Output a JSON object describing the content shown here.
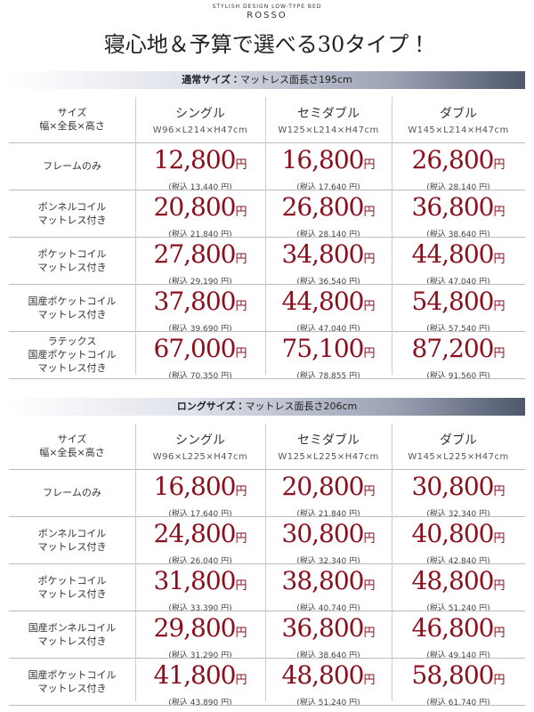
{
  "header": {
    "kicker": "STYLISH DESIGN LOW-TYPE BED",
    "brand": "ROSSO",
    "title": "寝心地＆予算で選べる30タイプ！"
  },
  "currency": "円",
  "sections": [
    {
      "title_bold": "通常サイズ：",
      "title_rest": "マットレス面長さ195cm",
      "header": {
        "label": [
          "サイズ",
          "幅×全長×高さ"
        ],
        "columns": [
          {
            "name": "シングル",
            "dims": "W96×L214×H47cm"
          },
          {
            "name": "セミダブル",
            "dims": "W125×L214×H47cm"
          },
          {
            "name": "ダブル",
            "dims": "W145×L214×H47cm"
          }
        ]
      },
      "rows": [
        {
          "label": [
            "フレームのみ"
          ],
          "cells": [
            {
              "price": "12,800",
              "tax": "(税込 13,440 円)"
            },
            {
              "price": "16,800",
              "tax": "(税込 17,640 円)"
            },
            {
              "price": "26,800",
              "tax": "(税込 28,140 円)"
            }
          ]
        },
        {
          "label": [
            "ボンネルコイル",
            "マットレス付き"
          ],
          "cells": [
            {
              "price": "20,800",
              "tax": "(税込 21,840 円)"
            },
            {
              "price": "26,800",
              "tax": "(税込 28,140 円)"
            },
            {
              "price": "36,800",
              "tax": "(税込 38,640 円)"
            }
          ]
        },
        {
          "label": [
            "ポケットコイル",
            "マットレス付き"
          ],
          "cells": [
            {
              "price": "27,800",
              "tax": "(税込 29,190 円)"
            },
            {
              "price": "34,800",
              "tax": "(税込 36,540 円)"
            },
            {
              "price": "44,800",
              "tax": "(税込 47,040 円)"
            }
          ]
        },
        {
          "label": [
            "国産ポケットコイル",
            "マットレス付き"
          ],
          "cells": [
            {
              "price": "37,800",
              "tax": "(税込 39,690 円)"
            },
            {
              "price": "44,800",
              "tax": "(税込 47,040 円)"
            },
            {
              "price": "54,800",
              "tax": "(税込 57,540 円)"
            }
          ]
        },
        {
          "label": [
            "ラテックス",
            "国産ポケットコイル",
            "マットレス付き"
          ],
          "cells": [
            {
              "price": "67,000",
              "tax": "(税込 70,350 円)"
            },
            {
              "price": "75,100",
              "tax": "(税込 78,855 円)"
            },
            {
              "price": "87,200",
              "tax": "(税込 91,560 円)"
            }
          ]
        }
      ]
    },
    {
      "title_bold": "ロングサイズ：",
      "title_rest": "マットレス面長さ206cm",
      "header": {
        "label": [
          "サイズ",
          "幅×全長×高さ"
        ],
        "columns": [
          {
            "name": "シングル",
            "dims": "W96×L225×H47cm"
          },
          {
            "name": "セミダブル",
            "dims": "W125×L225×H47cm"
          },
          {
            "name": "ダブル",
            "dims": "W145×L225×H47cm"
          }
        ]
      },
      "rows": [
        {
          "label": [
            "フレームのみ"
          ],
          "cells": [
            {
              "price": "16,800",
              "tax": "(税込 17,640 円)"
            },
            {
              "price": "20,800",
              "tax": "(税込 21,840 円)"
            },
            {
              "price": "30,800",
              "tax": "(税込 32,340 円)"
            }
          ]
        },
        {
          "label": [
            "ボンネルコイル",
            "マットレス付き"
          ],
          "cells": [
            {
              "price": "24,800",
              "tax": "(税込 26,040 円)"
            },
            {
              "price": "30,800",
              "tax": "(税込 32,340 円)"
            },
            {
              "price": "40,800",
              "tax": "(税込 42,840 円)"
            }
          ]
        },
        {
          "label": [
            "ポケットコイル",
            "マットレス付き"
          ],
          "cells": [
            {
              "price": "31,800",
              "tax": "(税込 33,390 円)"
            },
            {
              "price": "38,800",
              "tax": "(税込 40,740 円)"
            },
            {
              "price": "48,800",
              "tax": "(税込 51,240 円)"
            }
          ]
        },
        {
          "label": [
            "国産ボンネルコイル",
            "マットレス付き"
          ],
          "cells": [
            {
              "price": "29,800",
              "tax": "(税込 31,290 円)"
            },
            {
              "price": "36,800",
              "tax": "(税込 38,640 円)"
            },
            {
              "price": "46,800",
              "tax": "(税込 49,140 円)"
            }
          ]
        },
        {
          "label": [
            "国産ポケットコイル",
            "マットレス付き"
          ],
          "cells": [
            {
              "price": "41,800",
              "tax": "(税込 43,890 円)"
            },
            {
              "price": "48,800",
              "tax": "(税込 51,240 円)"
            },
            {
              "price": "58,800",
              "tax": "(税込 61,740 円)"
            }
          ]
        }
      ]
    }
  ]
}
